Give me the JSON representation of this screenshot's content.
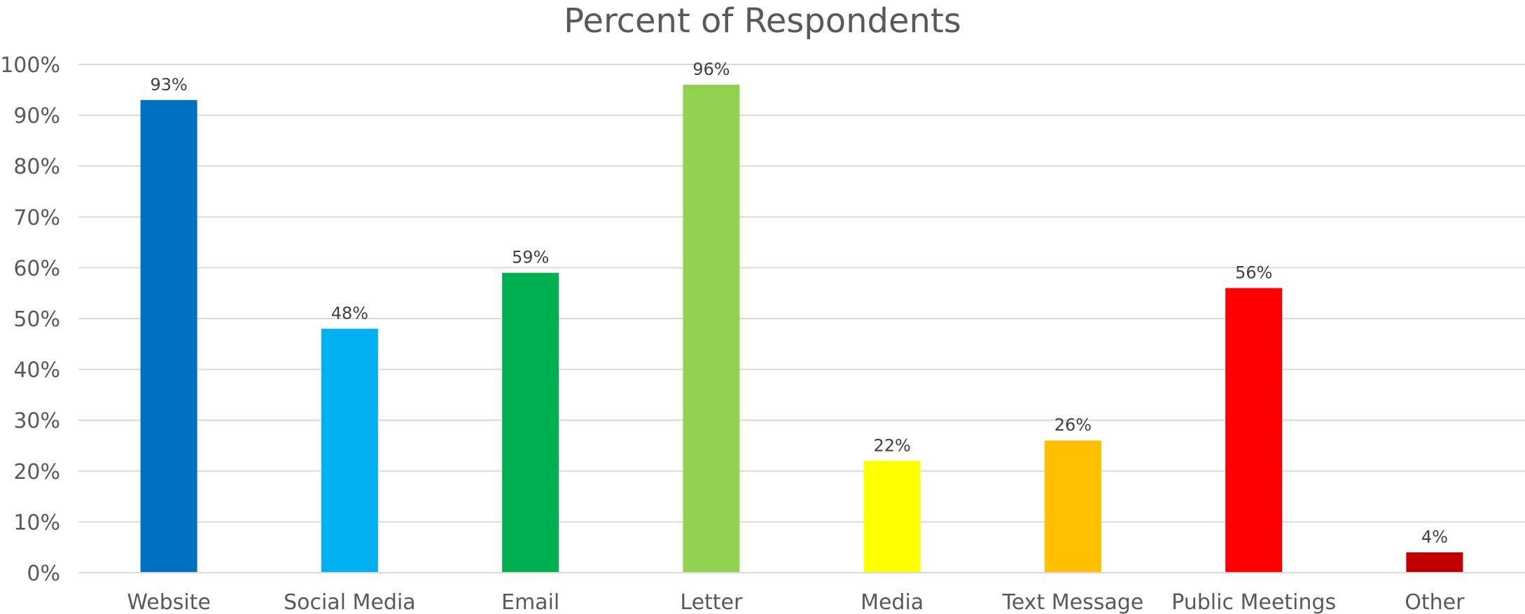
{
  "chart_data": {
    "type": "bar",
    "title": "Percent of Respondents",
    "xlabel": "",
    "ylabel": "",
    "categories": [
      "Website",
      "Social Media",
      "Email",
      "Letter",
      "Media",
      "Text Message",
      "Public Meetings",
      "Other"
    ],
    "values": [
      93,
      48,
      59,
      96,
      22,
      26,
      56,
      4
    ],
    "data_labels": [
      "93%",
      "48%",
      "59%",
      "96%",
      "22%",
      "26%",
      "56%",
      "4%"
    ],
    "colors": [
      "#0070C0",
      "#00B0F0",
      "#00B050",
      "#92D050",
      "#FFFF00",
      "#FFC000",
      "#FF0000",
      "#C00000"
    ],
    "ylim": [
      0,
      100
    ],
    "yticks": [
      0,
      10,
      20,
      30,
      40,
      50,
      60,
      70,
      80,
      90,
      100
    ],
    "ytick_labels": [
      "0%",
      "10%",
      "20%",
      "30%",
      "40%",
      "50%",
      "60%",
      "70%",
      "80%",
      "90%",
      "100%"
    ],
    "grid": true,
    "legend": "none",
    "gridline_color": "#D9D9D9"
  }
}
